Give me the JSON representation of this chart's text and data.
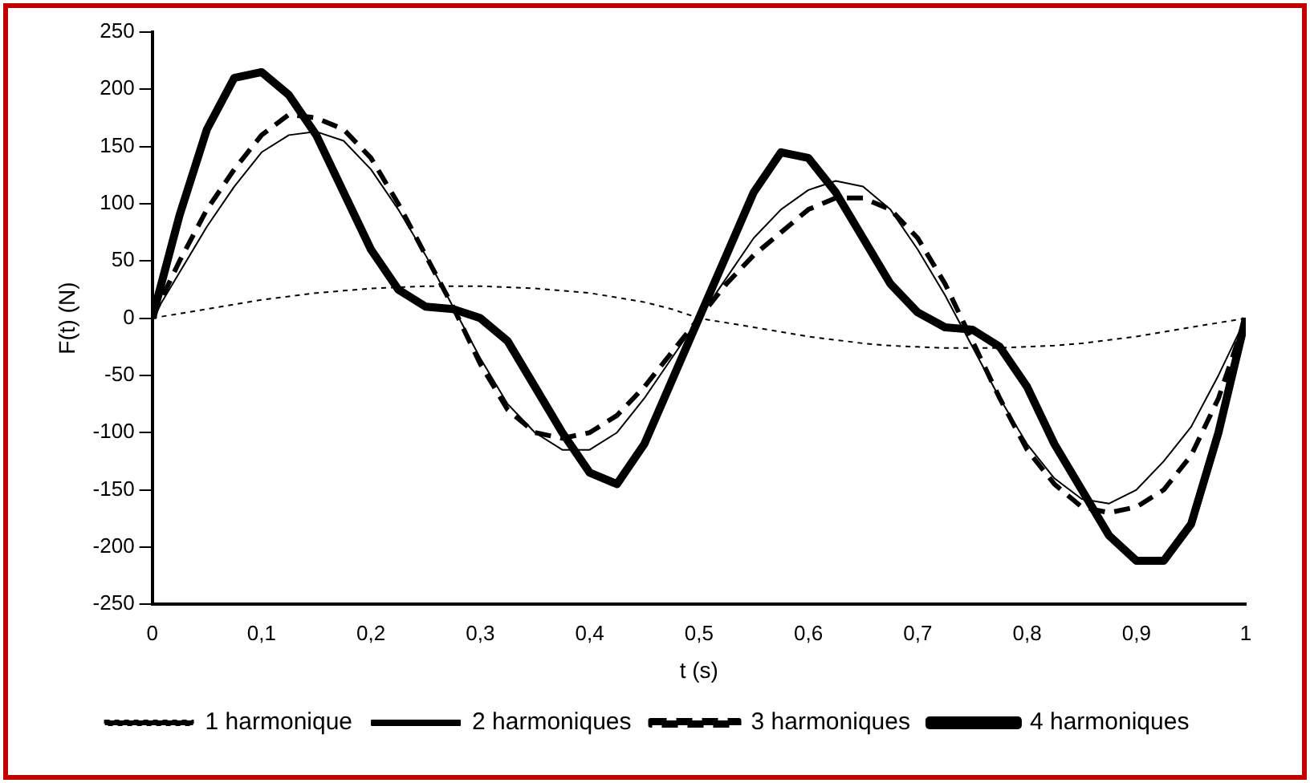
{
  "chart_data": {
    "type": "line",
    "xlabel": "t (s)",
    "ylabel": "F(t) (N)",
    "x": [
      0,
      0.025,
      0.05,
      0.075,
      0.1,
      0.125,
      0.15,
      0.175,
      0.2,
      0.225,
      0.25,
      0.275,
      0.3,
      0.325,
      0.35,
      0.375,
      0.4,
      0.425,
      0.45,
      0.475,
      0.5,
      0.525,
      0.55,
      0.575,
      0.6,
      0.625,
      0.65,
      0.675,
      0.7,
      0.725,
      0.75,
      0.775,
      0.8,
      0.825,
      0.85,
      0.875,
      0.9,
      0.925,
      0.95,
      0.975,
      1
    ],
    "series": [
      {
        "name": "1 harmonique",
        "color": "#000000",
        "line_style": "dotted",
        "values": [
          0,
          4,
          8,
          12,
          16,
          19,
          22,
          24,
          26,
          27,
          28,
          28,
          28,
          27,
          26,
          24,
          22,
          18,
          14,
          8,
          0,
          -4,
          -8,
          -12,
          -16,
          -19,
          -22,
          -24,
          -25,
          -26,
          -26,
          -26,
          -25,
          -24,
          -22,
          -19,
          -16,
          -12,
          -8,
          -4,
          0
        ]
      },
      {
        "name": "2 harmoniques",
        "color": "#000000",
        "line_style": "solid",
        "values": [
          0,
          40,
          80,
          115,
          145,
          160,
          163,
          155,
          130,
          95,
          55,
          10,
          -35,
          -75,
          -100,
          -115,
          -115,
          -100,
          -70,
          -35,
          0,
          35,
          70,
          95,
          112,
          120,
          115,
          95,
          60,
          20,
          -25,
          -70,
          -110,
          -140,
          -158,
          -162,
          -150,
          -125,
          -95,
          -50,
          0
        ]
      },
      {
        "name": "3 harmoniques",
        "color": "#000000",
        "line_style": "dashed",
        "values": [
          0,
          50,
          95,
          130,
          160,
          178,
          175,
          165,
          140,
          100,
          55,
          10,
          -40,
          -80,
          -100,
          -105,
          -100,
          -85,
          -60,
          -30,
          0,
          30,
          55,
          75,
          95,
          105,
          105,
          95,
          70,
          30,
          -20,
          -70,
          -115,
          -145,
          -165,
          -170,
          -165,
          -150,
          -120,
          -70,
          0
        ]
      },
      {
        "name": "4 harmoniques",
        "color": "#000000",
        "line_style": "solid",
        "values": [
          0,
          90,
          165,
          210,
          215,
          195,
          160,
          110,
          60,
          25,
          10,
          8,
          0,
          -20,
          -60,
          -100,
          -135,
          -145,
          -110,
          -55,
          0,
          55,
          110,
          145,
          140,
          110,
          70,
          30,
          5,
          -8,
          -10,
          -25,
          -60,
          -110,
          -150,
          -190,
          -212,
          -212,
          -180,
          -100,
          0
        ]
      }
    ],
    "xlim": [
      0,
      1
    ],
    "xticks": [
      0,
      {
        "value": 0.1,
        "label": "0,1"
      },
      {
        "value": 0.2,
        "label": "0,2"
      },
      {
        "value": 0.3,
        "label": "0,3"
      },
      {
        "value": 0.4,
        "label": "0,4"
      },
      {
        "value": 0.5,
        "label": "0,5"
      },
      {
        "value": 0.6,
        "label": "0,6"
      },
      {
        "value": 0.7,
        "label": "0,7"
      },
      {
        "value": 0.8,
        "label": "0,8"
      },
      {
        "value": 0.9,
        "label": "0,9"
      },
      1
    ],
    "ylim": [
      -250,
      250
    ],
    "yticks": [
      -250,
      -200,
      -150,
      -100,
      -50,
      0,
      50,
      100,
      150,
      200,
      250
    ],
    "grid": false,
    "legend": "bottom",
    "marker": "none"
  }
}
